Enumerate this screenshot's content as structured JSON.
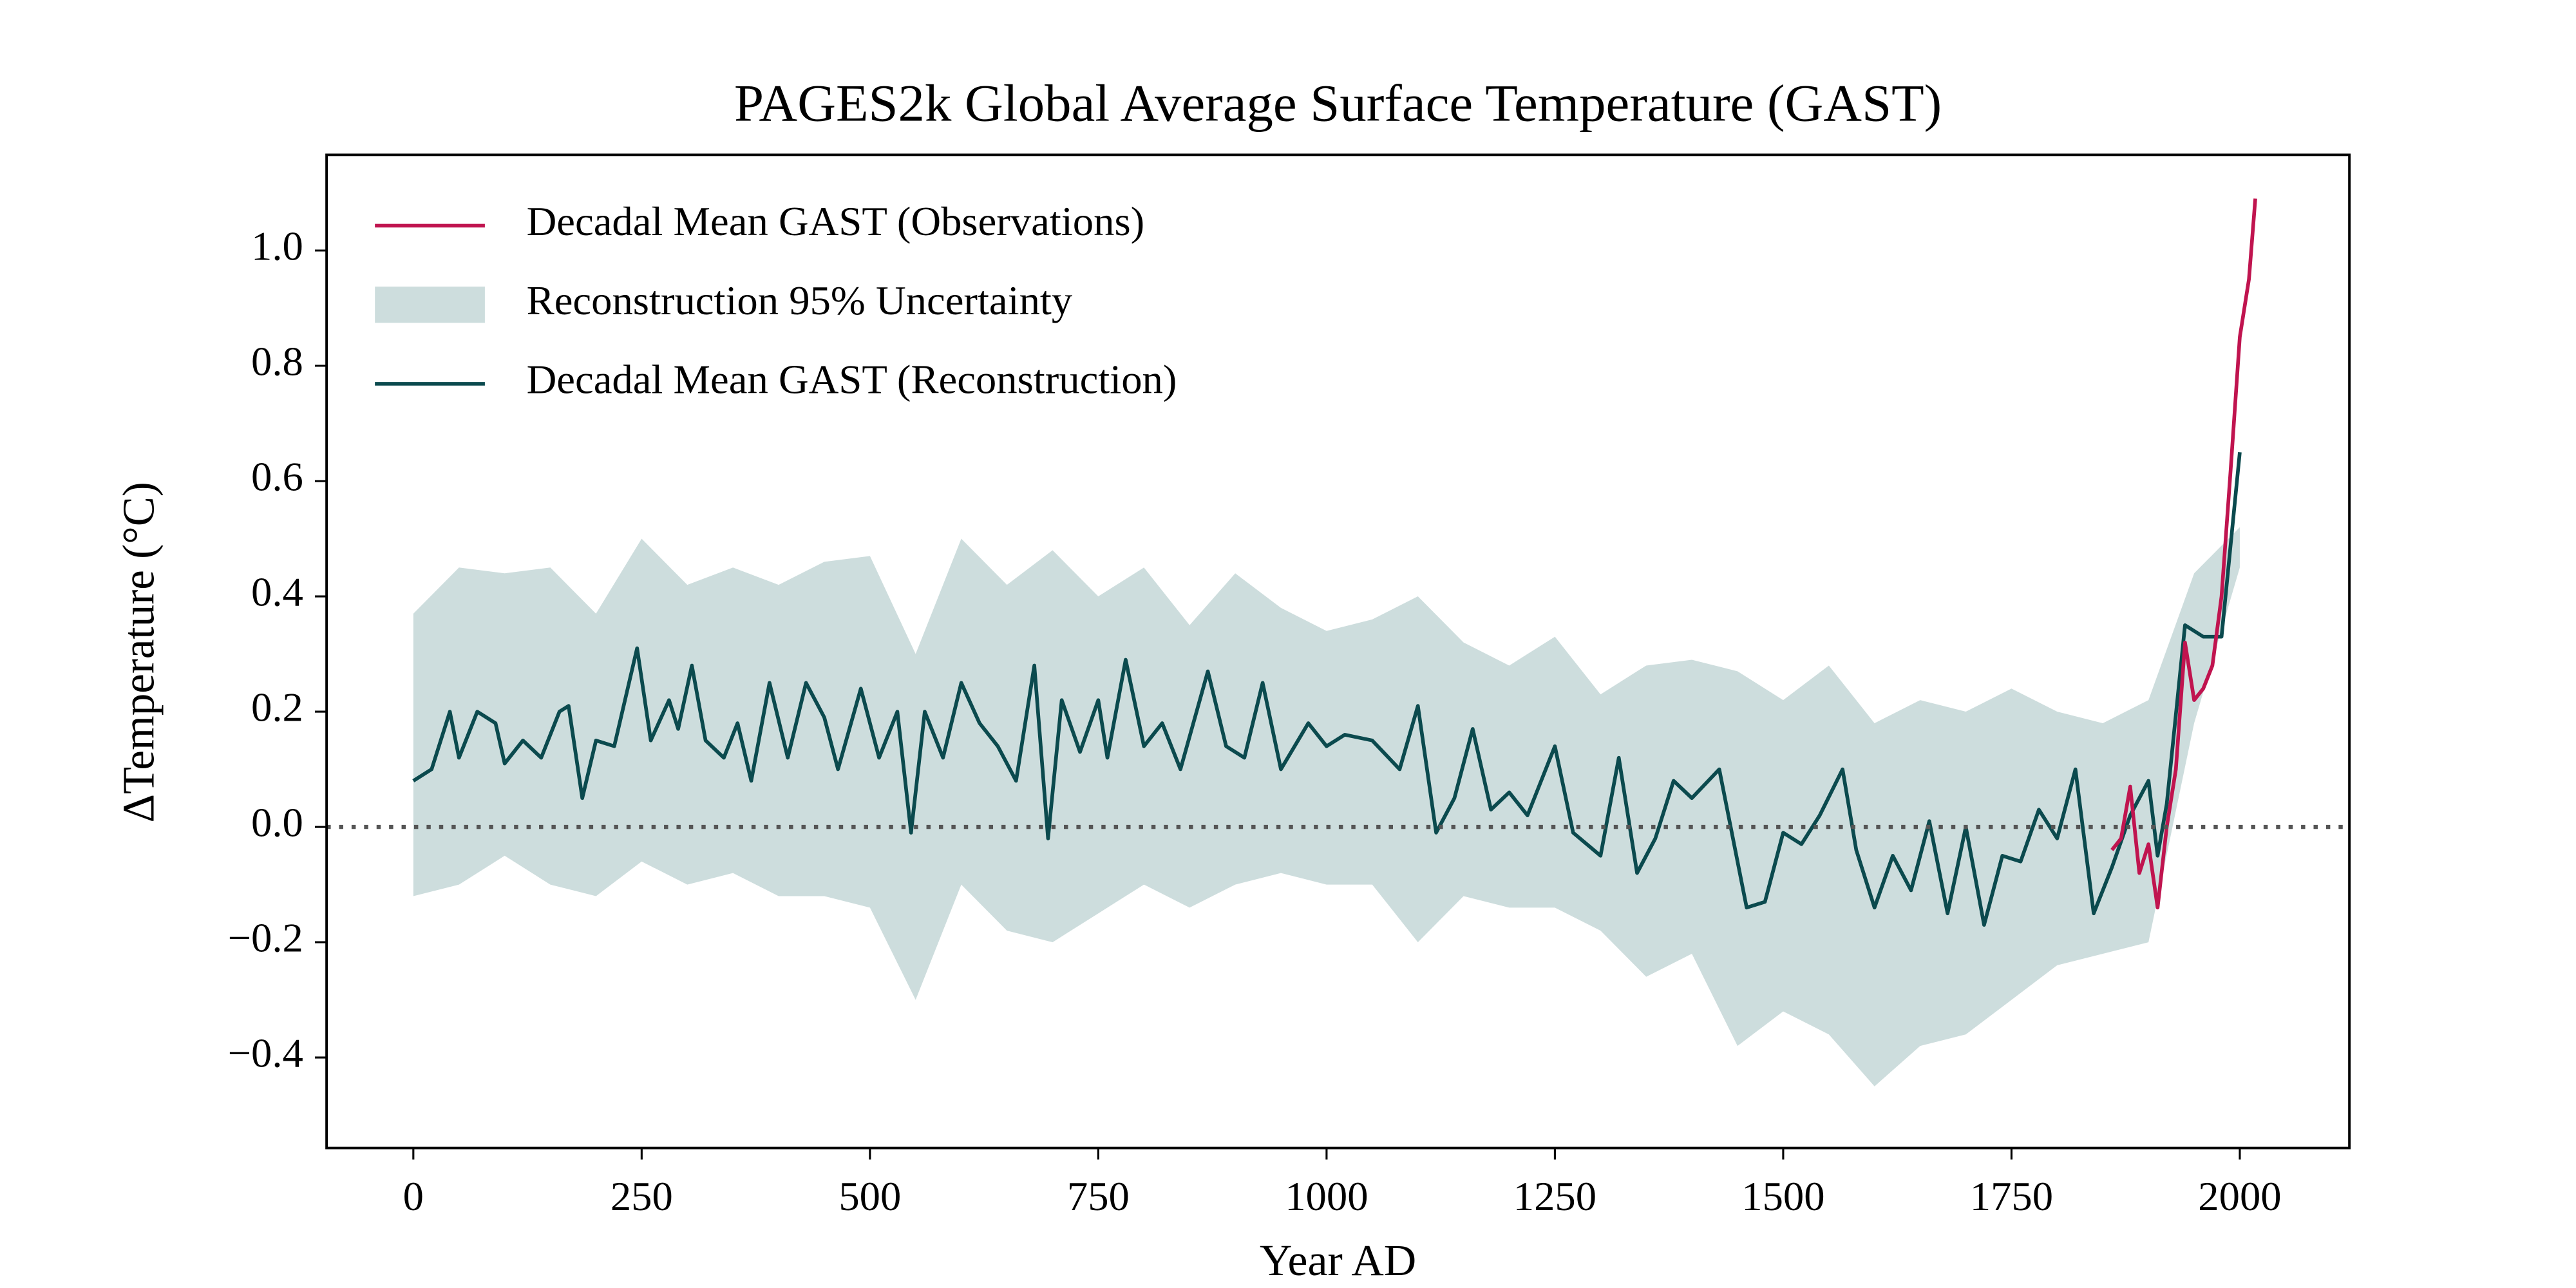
{
  "chart_data": {
    "type": "line",
    "title": "PAGES2k Global Average Surface Temperature (GAST)",
    "xlabel": "Year AD",
    "ylabel": "ΔTemperature (°C)",
    "xlim": [
      -95,
      2120
    ],
    "ylim": [
      -0.557,
      1.166
    ],
    "xticks": [
      0,
      250,
      500,
      750,
      1000,
      1250,
      1500,
      1750,
      2000
    ],
    "yticks": [
      {
        "value": -0.4,
        "label": "−0.4"
      },
      {
        "value": -0.2,
        "label": "−0.2"
      },
      {
        "value": 0,
        "label": "0.0"
      },
      0.2,
      0.4,
      0.6,
      0.8,
      {
        "value": 1,
        "label": "1.0"
      }
    ],
    "reference_line": 0,
    "legend": "upper left",
    "series": [
      {
        "name": "Decadal Mean GAST (Observations)",
        "kind": "line",
        "color": "#c0144f",
        "x": [
          1860,
          1870,
          1880,
          1890,
          1900,
          1910,
          1920,
          1930,
          1940,
          1950,
          1960,
          1970,
          1980,
          1990,
          2000,
          2010,
          2017
        ],
        "values": [
          -0.04,
          -0.02,
          0.07,
          -0.08,
          -0.03,
          -0.14,
          0.0,
          0.1,
          0.32,
          0.22,
          0.24,
          0.28,
          0.4,
          0.62,
          0.85,
          0.95,
          1.09
        ]
      },
      {
        "name": "Reconstruction 95% Uncertainty",
        "kind": "band",
        "color": "#cddddd",
        "x": [
          0,
          50,
          100,
          150,
          200,
          250,
          300,
          350,
          400,
          450,
          500,
          550,
          600,
          650,
          700,
          750,
          800,
          850,
          900,
          950,
          1000,
          1050,
          1100,
          1150,
          1200,
          1250,
          1300,
          1350,
          1400,
          1450,
          1500,
          1550,
          1600,
          1650,
          1700,
          1750,
          1800,
          1850,
          1900,
          1950,
          2000
        ],
        "upper": [
          0.37,
          0.45,
          0.44,
          0.45,
          0.37,
          0.5,
          0.42,
          0.45,
          0.42,
          0.46,
          0.47,
          0.3,
          0.5,
          0.42,
          0.48,
          0.4,
          0.45,
          0.35,
          0.44,
          0.38,
          0.34,
          0.36,
          0.4,
          0.32,
          0.28,
          0.33,
          0.23,
          0.28,
          0.29,
          0.27,
          0.22,
          0.28,
          0.18,
          0.22,
          0.2,
          0.24,
          0.2,
          0.18,
          0.22,
          0.44,
          0.52
        ],
        "lower": [
          -0.12,
          -0.1,
          -0.05,
          -0.1,
          -0.12,
          -0.06,
          -0.1,
          -0.08,
          -0.12,
          -0.12,
          -0.14,
          -0.3,
          -0.1,
          -0.18,
          -0.2,
          -0.15,
          -0.1,
          -0.14,
          -0.1,
          -0.08,
          -0.1,
          -0.1,
          -0.2,
          -0.12,
          -0.14,
          -0.14,
          -0.18,
          -0.26,
          -0.22,
          -0.38,
          -0.32,
          -0.36,
          -0.45,
          -0.38,
          -0.36,
          -0.3,
          -0.24,
          -0.22,
          -0.2,
          0.18,
          0.45
        ]
      },
      {
        "name": "Decadal Mean GAST (Reconstruction)",
        "kind": "line",
        "color": "#0b4a4e",
        "x": [
          0,
          20,
          40,
          50,
          70,
          90,
          100,
          120,
          140,
          160,
          170,
          185,
          200,
          220,
          245,
          260,
          280,
          290,
          305,
          320,
          340,
          355,
          370,
          390,
          410,
          430,
          450,
          465,
          490,
          510,
          530,
          545,
          560,
          580,
          600,
          620,
          640,
          660,
          680,
          695,
          710,
          730,
          750,
          760,
          780,
          800,
          820,
          840,
          870,
          890,
          910,
          930,
          950,
          980,
          1000,
          1020,
          1050,
          1080,
          1100,
          1120,
          1140,
          1160,
          1180,
          1200,
          1220,
          1250,
          1270,
          1300,
          1320,
          1340,
          1360,
          1380,
          1400,
          1430,
          1460,
          1480,
          1500,
          1520,
          1540,
          1565,
          1580,
          1600,
          1620,
          1640,
          1660,
          1680,
          1700,
          1720,
          1740,
          1760,
          1780,
          1800,
          1820,
          1840,
          1860,
          1880,
          1900,
          1910,
          1920,
          1940,
          1960,
          1980,
          2000
        ],
        "values": [
          0.08,
          0.1,
          0.2,
          0.12,
          0.2,
          0.18,
          0.11,
          0.15,
          0.12,
          0.2,
          0.21,
          0.05,
          0.15,
          0.14,
          0.31,
          0.15,
          0.22,
          0.17,
          0.28,
          0.15,
          0.12,
          0.18,
          0.08,
          0.25,
          0.12,
          0.25,
          0.19,
          0.1,
          0.24,
          0.12,
          0.2,
          -0.01,
          0.2,
          0.12,
          0.25,
          0.18,
          0.14,
          0.08,
          0.28,
          -0.02,
          0.22,
          0.13,
          0.22,
          0.12,
          0.29,
          0.14,
          0.18,
          0.1,
          0.27,
          0.14,
          0.12,
          0.25,
          0.1,
          0.18,
          0.14,
          0.16,
          0.15,
          0.1,
          0.21,
          -0.01,
          0.05,
          0.17,
          0.03,
          0.06,
          0.02,
          0.14,
          -0.01,
          -0.05,
          0.12,
          -0.08,
          -0.02,
          0.08,
          0.05,
          0.1,
          -0.14,
          -0.13,
          -0.01,
          -0.03,
          0.02,
          0.1,
          -0.04,
          -0.14,
          -0.05,
          -0.11,
          0.01,
          -0.15,
          0.0,
          -0.17,
          -0.05,
          -0.06,
          0.03,
          -0.02,
          0.1,
          -0.15,
          -0.07,
          0.02,
          0.08,
          -0.05,
          0.04,
          0.35,
          0.33,
          0.33,
          0.65
        ]
      }
    ]
  }
}
